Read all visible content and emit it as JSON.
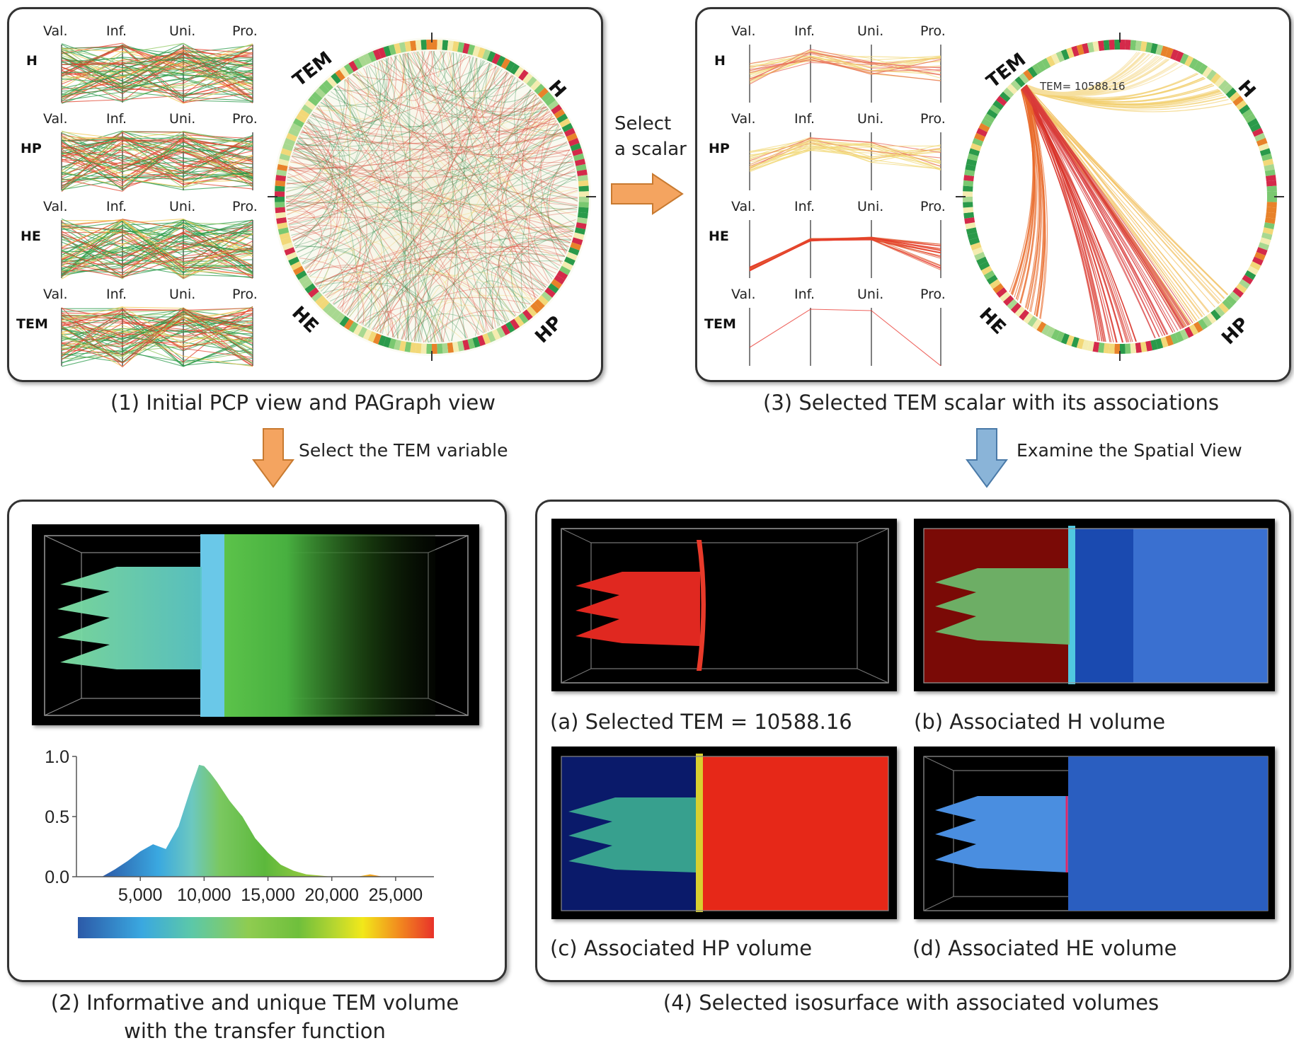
{
  "panel1": {
    "caption": "(1) Initial PCP view and PAGraph view",
    "axes": [
      "Val.",
      "Inf.",
      "Uni.",
      "Pro."
    ],
    "variables": [
      "H",
      "HP",
      "HE",
      "TEM"
    ],
    "circle_labels": {
      "tem": "TEM",
      "h": "H",
      "he": "HE",
      "hp": "HP"
    }
  },
  "panel3": {
    "caption": "(3) Selected TEM scalar with its associations",
    "axes": [
      "Val.",
      "Inf.",
      "Uni.",
      "Pro."
    ],
    "variables": [
      "H",
      "HP",
      "HE",
      "TEM"
    ],
    "circle_labels": {
      "tem": "TEM",
      "h": "H",
      "he": "HE",
      "hp": "HP"
    },
    "annotation": "TEM= 10588.16"
  },
  "arrow_select_scalar": {
    "line1": "Select",
    "line2": "a scalar"
  },
  "arrow_select_tem": "Select the TEM variable",
  "arrow_examine": "Examine the Spatial View",
  "panel2": {
    "caption_line1": "(2) Informative and unique TEM volume",
    "caption_line2": "with the transfer function",
    "chart_data": {
      "type": "area",
      "x": [
        2000,
        3000,
        4000,
        5000,
        6000,
        7000,
        8000,
        9000,
        9600,
        10000,
        10500,
        11000,
        12000,
        13000,
        14000,
        15000,
        16000,
        17000,
        18000,
        19000,
        20000,
        21000,
        22000,
        23000,
        24000
      ],
      "values": [
        0.0,
        0.06,
        0.13,
        0.21,
        0.27,
        0.23,
        0.42,
        0.75,
        0.93,
        0.92,
        0.86,
        0.79,
        0.63,
        0.5,
        0.32,
        0.2,
        0.1,
        0.05,
        0.02,
        0.01,
        0.0,
        0.0,
        0.0,
        0.02,
        0.0
      ],
      "yticks": [
        "0.0",
        "0.5",
        "1.0"
      ],
      "xticks": [
        "5,000",
        "10,000",
        "15,000",
        "20,000",
        "25,000"
      ],
      "xlim": [
        0,
        28000
      ],
      "ylim": [
        0,
        1.0
      ],
      "colormap": [
        "#2c5aa8",
        "#3aa8e0",
        "#5cc8a8",
        "#8fcc50",
        "#6fbf3c",
        "#b5d630",
        "#f2e81a",
        "#f28c1e",
        "#e8322a"
      ]
    }
  },
  "panel4": {
    "caption": "(4) Selected isosurface with associated volumes",
    "a": "(a) Selected TEM = 10588.16",
    "b": "(b) Associated H volume",
    "c": "(c) Associated HP volume",
    "d": "(d) Associated HE volume"
  }
}
